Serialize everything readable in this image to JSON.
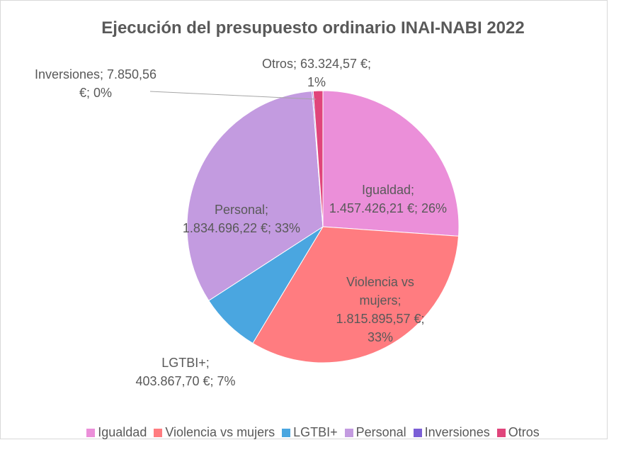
{
  "chart_data": {
    "type": "pie",
    "title": "Ejecución del presupuesto ordinario INAI-NABI 2022",
    "categories": [
      "Igualdad",
      "Violencia vs mujers",
      "LGTBI+",
      "Personal",
      "Inversiones",
      "Otros"
    ],
    "values": [
      1457426.21,
      1815895.57,
      403867.7,
      1834696.22,
      7850.56,
      63324.57
    ],
    "percents": [
      26,
      33,
      7,
      33,
      0,
      1
    ],
    "data_labels": [
      "Igualdad; 1.457.426,21 €; 26%",
      "Violencia vs mujers; 1.815.895,57 €; 33%",
      "LGTBI+; 403.867,70 €; 7%",
      "Personal; 1.834.696,22 €; 33%",
      "Inversiones; 7.850,56 €; 0%",
      "Otros; 63.324,57 €; 1%"
    ],
    "colors": [
      "#eb8fd9",
      "#ff7c80",
      "#4aa6e0",
      "#c39be0",
      "#7b5fd6",
      "#e0457b"
    ],
    "legend": "bottom"
  }
}
